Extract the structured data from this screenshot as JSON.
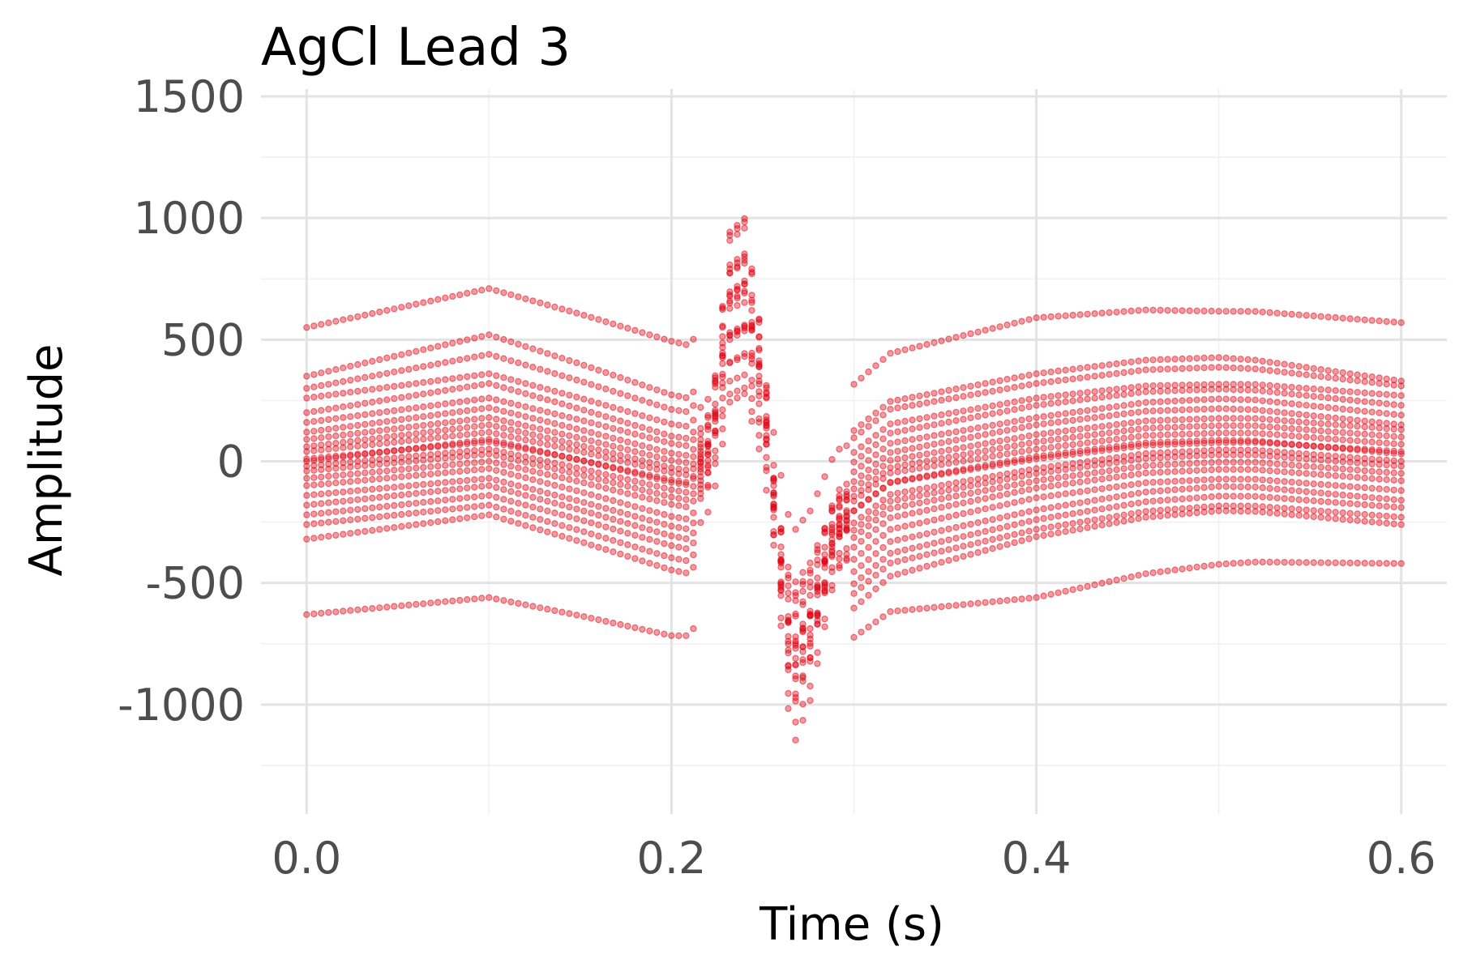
{
  "chart_data": {
    "type": "scatter",
    "title": "AgCl Lead 3",
    "xlabel": "Time (s)",
    "ylabel": "Amplitude",
    "xlim": [
      -0.025,
      0.625
    ],
    "ylim": [
      -1450,
      1530
    ],
    "x_ticks": [
      0.0,
      0.2,
      0.4,
      0.6
    ],
    "x_tick_labels": [
      "0.0",
      "0.2",
      "0.4",
      "0.6"
    ],
    "y_ticks": [
      -1000,
      -500,
      0,
      500,
      1000,
      1500
    ],
    "y_tick_labels": [
      "-1000",
      "-500",
      "0",
      "500",
      "1000",
      "1500"
    ],
    "grid": true,
    "legend": "none",
    "point_color": "#e0000f",
    "point_opacity": 0.4,
    "sample_interval_s": 0.004,
    "template": {
      "time": [
        0.0,
        0.1,
        0.15,
        0.21,
        0.222,
        0.232,
        0.24,
        0.25,
        0.258,
        0.266,
        0.276,
        0.29,
        0.32,
        0.4,
        0.46,
        0.52,
        0.6
      ],
      "amplitude": [
        0,
        60,
        0,
        -80,
        80,
        640,
        680,
        300,
        -300,
        -800,
        -650,
        -260,
        -90,
        0,
        50,
        60,
        30
      ]
    },
    "series": [
      {
        "offsets": {
          "time": [
            0.0,
            0.1,
            0.2,
            0.3,
            0.4,
            0.5,
            0.6
          ],
          "amplitude": [
            550,
            650,
            560,
            520,
            590,
            560,
            540
          ]
        }
      },
      {
        "offsets": {
          "time": [
            0.0,
            0.1,
            0.2,
            0.3,
            0.4,
            0.5,
            0.6
          ],
          "amplitude": [
            -630,
            -620,
            -650,
            -520,
            -560,
            -480,
            -450
          ]
        }
      },
      {
        "offsets": {
          "time": [
            0.0,
            0.1,
            0.2,
            0.3,
            0.4,
            0.5,
            0.6
          ],
          "amplitude": [
            -320,
            -280,
            -380,
            -400,
            -310,
            -260,
            -290
          ]
        }
      },
      {
        "offsets": {
          "time": [
            0.0,
            0.1,
            0.2,
            0.3,
            0.4,
            0.5,
            0.6
          ],
          "amplitude": [
            350,
            460,
            340,
            330,
            360,
            370,
            300
          ]
        }
      },
      {
        "offsets": {
          "time": [
            0.0,
            0.1,
            0.2,
            0.3,
            0.4,
            0.5,
            0.6
          ],
          "amplitude": [
            260,
            300,
            220,
            240,
            260,
            260,
            240
          ]
        }
      },
      {
        "offsets": {
          "time": [
            0.0,
            0.1,
            0.2,
            0.3,
            0.4,
            0.5,
            0.6
          ],
          "amplitude": [
            -220,
            -200,
            -280,
            -300,
            -240,
            -200,
            -220
          ]
        }
      },
      {
        "offsets": {
          "time": [
            0.0,
            0.1,
            0.2,
            0.3,
            0.4,
            0.5,
            0.6
          ],
          "amplitude": [
            160,
            200,
            140,
            160,
            180,
            200,
            160
          ]
        }
      },
      {
        "offsets": {
          "time": [
            0.0,
            0.1,
            0.2,
            0.3,
            0.4,
            0.5,
            0.6
          ],
          "amplitude": [
            -140,
            -130,
            -200,
            -200,
            -150,
            -130,
            -150
          ]
        }
      },
      {
        "offsets": {
          "time": [
            0.0,
            0.1,
            0.2,
            0.3,
            0.4,
            0.5,
            0.6
          ],
          "amplitude": [
            90,
            120,
            70,
            90,
            110,
            120,
            100
          ]
        }
      },
      {
        "offsets": {
          "time": [
            0.0,
            0.1,
            0.2,
            0.3,
            0.4,
            0.5,
            0.6
          ],
          "amplitude": [
            -70,
            -60,
            -110,
            -110,
            -80,
            -60,
            -80
          ]
        }
      },
      {
        "offsets": {
          "time": [
            0.0,
            0.1,
            0.2,
            0.3,
            0.4,
            0.5,
            0.6
          ],
          "amplitude": [
            40,
            60,
            20,
            40,
            50,
            60,
            40
          ]
        }
      },
      {
        "offsets": {
          "time": [
            0.0,
            0.1,
            0.2,
            0.3,
            0.4,
            0.5,
            0.6
          ],
          "amplitude": [
            -20,
            -10,
            -50,
            -50,
            -30,
            -10,
            -30
          ]
        }
      },
      {
        "offsets": {
          "time": [
            0.0,
            0.1,
            0.2,
            0.3,
            0.4,
            0.5,
            0.6
          ],
          "amplitude": [
            10,
            20,
            -10,
            0,
            10,
            20,
            10
          ]
        }
      },
      {
        "offsets": {
          "time": [
            0.0,
            0.1,
            0.2,
            0.3,
            0.4,
            0.5,
            0.6
          ],
          "amplitude": [
            200,
            260,
            170,
            200,
            230,
            240,
            200
          ]
        }
      },
      {
        "offsets": {
          "time": [
            0.0,
            0.1,
            0.2,
            0.3,
            0.4,
            0.5,
            0.6
          ],
          "amplitude": [
            -260,
            -240,
            -330,
            -340,
            -280,
            -240,
            -260
          ]
        }
      },
      {
        "offsets": {
          "time": [
            0.0,
            0.1,
            0.2,
            0.3,
            0.4,
            0.5,
            0.6
          ],
          "amplitude": [
            120,
            160,
            100,
            120,
            150,
            160,
            120
          ]
        }
      },
      {
        "offsets": {
          "time": [
            0.0,
            0.1,
            0.2,
            0.3,
            0.4,
            0.5,
            0.6
          ],
          "amplitude": [
            -100,
            -90,
            -160,
            -150,
            -110,
            -90,
            -110
          ]
        }
      },
      {
        "offsets": {
          "time": [
            0.0,
            0.1,
            0.2,
            0.3,
            0.4,
            0.5,
            0.6
          ],
          "amplitude": [
            60,
            90,
            40,
            60,
            80,
            90,
            70
          ]
        }
      },
      {
        "offsets": {
          "time": [
            0.0,
            0.1,
            0.2,
            0.3,
            0.4,
            0.5,
            0.6
          ],
          "amplitude": [
            -40,
            -30,
            -80,
            -80,
            -50,
            -30,
            -50
          ]
        }
      },
      {
        "offsets": {
          "time": [
            0.0,
            0.1,
            0.2,
            0.3,
            0.4,
            0.5,
            0.6
          ],
          "amplitude": [
            300,
            380,
            280,
            300,
            320,
            330,
            280
          ]
        }
      },
      {
        "offsets": {
          "time": [
            0.0,
            0.1,
            0.2,
            0.3,
            0.4,
            0.5,
            0.6
          ],
          "amplitude": [
            -180,
            -160,
            -240,
            -250,
            -200,
            -160,
            -190
          ]
        }
      },
      {
        "offsets": {
          "time": [
            0.0,
            0.1,
            0.2,
            0.3,
            0.4,
            0.5,
            0.6
          ],
          "amplitude": [
            0,
            30,
            -20,
            0,
            20,
            30,
            0
          ]
        }
      }
    ]
  }
}
